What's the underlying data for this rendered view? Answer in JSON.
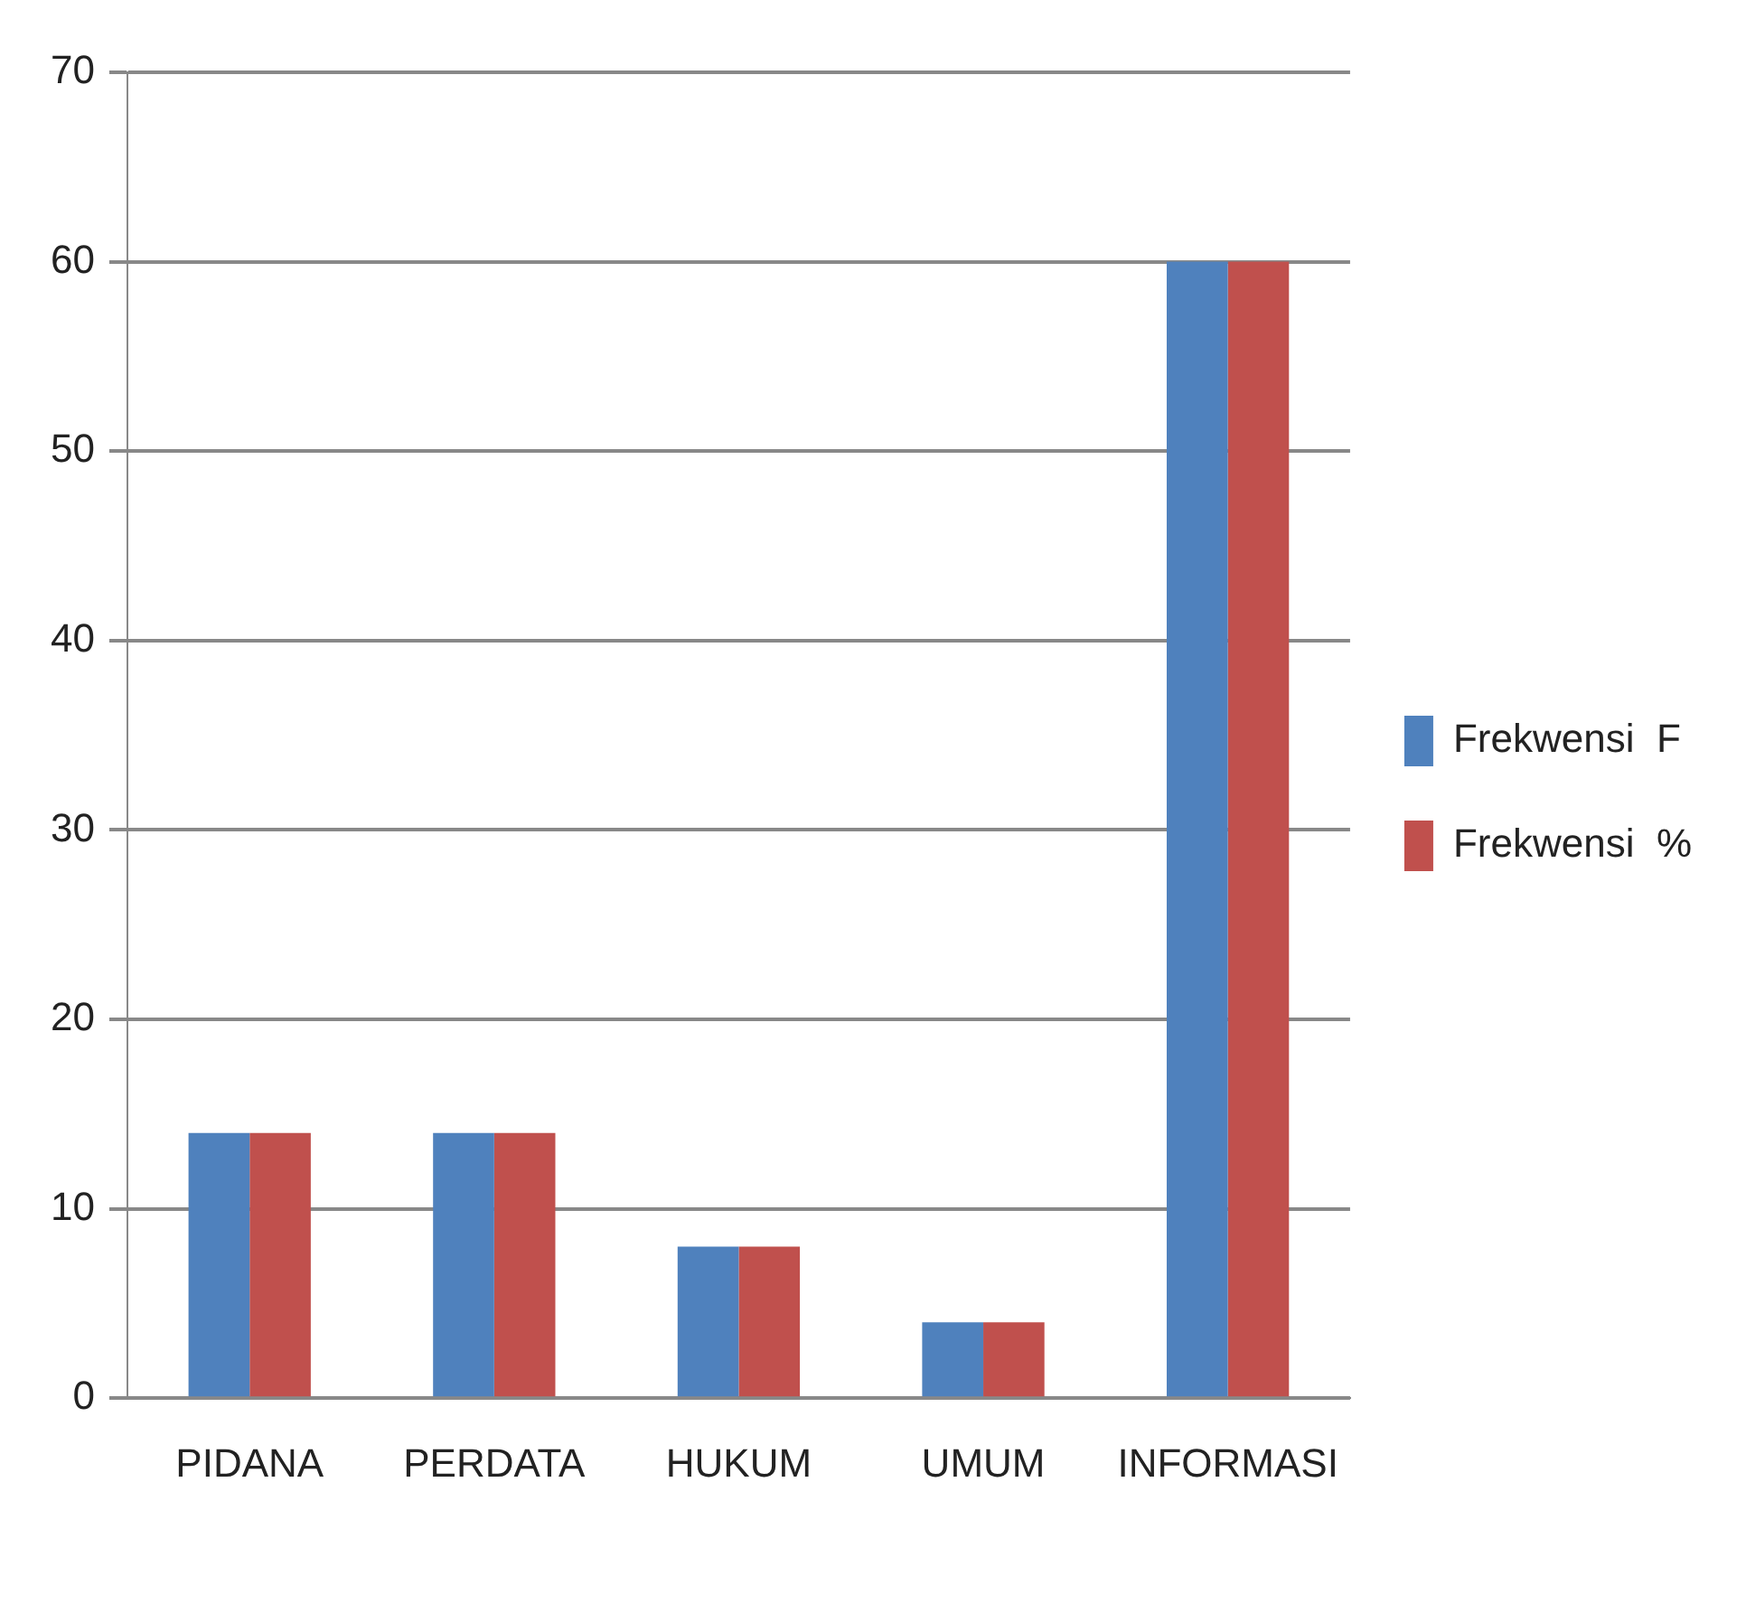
{
  "chart_data": {
    "type": "bar",
    "categories": [
      "PIDANA",
      "PERDATA",
      "HUKUM",
      "UMUM",
      "INFORMASI"
    ],
    "series": [
      {
        "name": "Frekwensi  F",
        "color": "#4f81bd",
        "values": [
          14,
          14,
          8,
          4,
          60
        ]
      },
      {
        "name": "Frekwensi  %",
        "color": "#c0504d",
        "values": [
          14,
          14,
          8,
          4,
          60
        ]
      }
    ],
    "ylim": [
      0,
      70
    ],
    "yticks": [
      0,
      10,
      20,
      30,
      40,
      50,
      60,
      70
    ],
    "grid": "y",
    "legend": "right"
  }
}
